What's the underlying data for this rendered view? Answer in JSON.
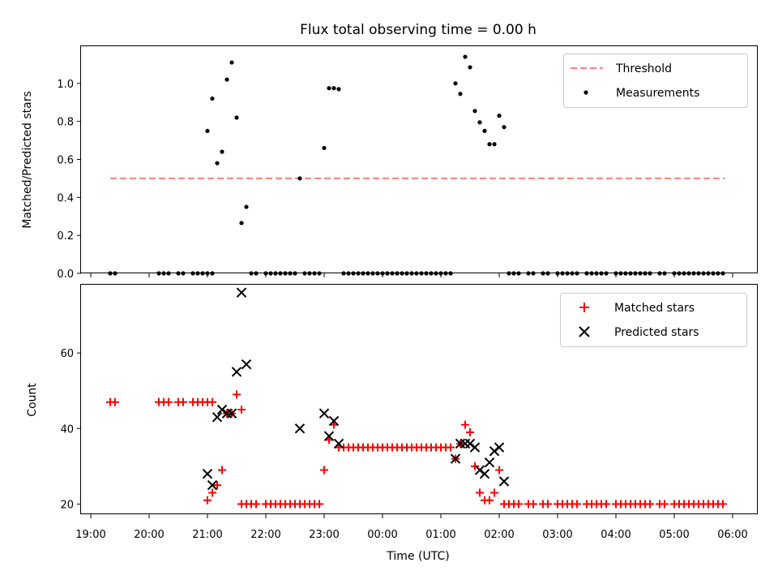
{
  "title": "Flux total observing time = 0.00 h",
  "chart_data": [
    {
      "type": "scatter",
      "ylabel": "Matched/Predicted stars",
      "xlabel": "",
      "ylim": [
        0,
        1.2
      ],
      "yticks": [
        0.0,
        0.2,
        0.4,
        0.6,
        0.8,
        1.0
      ],
      "ytick_labels": [
        "0.0",
        "0.2",
        "0.4",
        "0.6",
        "0.8",
        "1.0"
      ],
      "legend_position": "top-right",
      "threshold": {
        "name": "Threshold",
        "value": 0.5,
        "x_start": "19:20",
        "x_end": "05:52",
        "color": "#ff7f7f"
      },
      "series": [
        {
          "name": "Measurements",
          "color": "#000000",
          "points": [
            [
              "19:20",
              0
            ],
            [
              "19:25",
              0
            ],
            [
              "20:10",
              0
            ],
            [
              "20:15",
              0
            ],
            [
              "20:20",
              0
            ],
            [
              "20:30",
              0
            ],
            [
              "20:35",
              0
            ],
            [
              "20:45",
              0
            ],
            [
              "20:50",
              0
            ],
            [
              "20:55",
              0
            ],
            [
              "21:00",
              0
            ],
            [
              "21:05",
              0
            ],
            [
              "21:00",
              0.75
            ],
            [
              "21:05",
              0.92
            ],
            [
              "21:10",
              0.58
            ],
            [
              "21:15",
              0.64
            ],
            [
              "21:20",
              1.02
            ],
            [
              "21:25",
              1.11
            ],
            [
              "21:30",
              0.82
            ],
            [
              "21:35",
              0.265
            ],
            [
              "21:40",
              0.35
            ],
            [
              "21:45",
              0
            ],
            [
              "21:50",
              0
            ],
            [
              "22:00",
              0
            ],
            [
              "22:05",
              0
            ],
            [
              "22:10",
              0
            ],
            [
              "22:15",
              0
            ],
            [
              "22:20",
              0
            ],
            [
              "22:25",
              0
            ],
            [
              "22:30",
              0
            ],
            [
              "22:40",
              0
            ],
            [
              "22:45",
              0
            ],
            [
              "22:50",
              0
            ],
            [
              "22:55",
              0
            ],
            [
              "22:35",
              0.5
            ],
            [
              "23:00",
              0.66
            ],
            [
              "23:05",
              0.975
            ],
            [
              "23:10",
              0.975
            ],
            [
              "23:15",
              0.97
            ],
            [
              "23:20",
              0
            ],
            [
              "23:25",
              0
            ],
            [
              "23:30",
              0
            ],
            [
              "23:35",
              0
            ],
            [
              "23:40",
              0
            ],
            [
              "23:45",
              0
            ],
            [
              "23:50",
              0
            ],
            [
              "23:55",
              0
            ],
            [
              "00:00",
              0
            ],
            [
              "00:05",
              0
            ],
            [
              "00:10",
              0
            ],
            [
              "00:15",
              0
            ],
            [
              "00:20",
              0
            ],
            [
              "00:25",
              0
            ],
            [
              "00:30",
              0
            ],
            [
              "00:35",
              0
            ],
            [
              "00:40",
              0
            ],
            [
              "00:45",
              0
            ],
            [
              "00:50",
              0
            ],
            [
              "00:55",
              0
            ],
            [
              "01:00",
              0
            ],
            [
              "01:05",
              0
            ],
            [
              "01:10",
              0
            ],
            [
              "01:15",
              1.0
            ],
            [
              "01:20",
              0.945
            ],
            [
              "01:25",
              1.14
            ],
            [
              "01:30",
              1.085
            ],
            [
              "01:35",
              0.855
            ],
            [
              "01:40",
              0.795
            ],
            [
              "01:45",
              0.75
            ],
            [
              "01:50",
              0.68
            ],
            [
              "01:55",
              0.68
            ],
            [
              "02:00",
              0.83
            ],
            [
              "02:05",
              0.77
            ],
            [
              "02:10",
              0
            ],
            [
              "02:15",
              0
            ],
            [
              "02:20",
              0
            ],
            [
              "02:30",
              0
            ],
            [
              "02:35",
              0
            ],
            [
              "02:45",
              0
            ],
            [
              "02:50",
              0
            ],
            [
              "03:00",
              0
            ],
            [
              "03:05",
              0
            ],
            [
              "03:10",
              0
            ],
            [
              "03:15",
              0
            ],
            [
              "03:20",
              0
            ],
            [
              "03:30",
              0
            ],
            [
              "03:35",
              0
            ],
            [
              "03:40",
              0
            ],
            [
              "03:45",
              0
            ],
            [
              "03:50",
              0
            ],
            [
              "04:00",
              0
            ],
            [
              "04:05",
              0
            ],
            [
              "04:10",
              0
            ],
            [
              "04:15",
              0
            ],
            [
              "04:20",
              0
            ],
            [
              "04:25",
              0
            ],
            [
              "04:30",
              0
            ],
            [
              "04:35",
              0
            ],
            [
              "04:45",
              0
            ],
            [
              "04:50",
              0
            ],
            [
              "05:00",
              0
            ],
            [
              "05:05",
              0
            ],
            [
              "05:10",
              0
            ],
            [
              "05:15",
              0
            ],
            [
              "05:20",
              0
            ],
            [
              "05:25",
              0
            ],
            [
              "05:30",
              0
            ],
            [
              "05:35",
              0
            ],
            [
              "05:40",
              0
            ],
            [
              "05:45",
              0
            ],
            [
              "05:50",
              0
            ]
          ]
        }
      ]
    },
    {
      "type": "scatter",
      "ylabel": "Count",
      "xlabel": "Time (UTC)",
      "xlim": [
        "18:50",
        "06:25"
      ],
      "xticks": [
        "19:00",
        "20:00",
        "21:00",
        "22:00",
        "23:00",
        "00:00",
        "01:00",
        "02:00",
        "03:00",
        "04:00",
        "05:00",
        "06:00"
      ],
      "ylim": [
        17.3,
        78.3
      ],
      "yticks": [
        20,
        40,
        60
      ],
      "ytick_labels": [
        "20",
        "40",
        "60"
      ],
      "legend_position": "top-right",
      "series": [
        {
          "name": "Matched stars",
          "marker": "plus",
          "color": "#ff0000",
          "points": [
            [
              "19:20",
              47
            ],
            [
              "19:25",
              47
            ],
            [
              "20:10",
              47
            ],
            [
              "20:15",
              47
            ],
            [
              "20:20",
              47
            ],
            [
              "20:30",
              47
            ],
            [
              "20:35",
              47
            ],
            [
              "20:45",
              47
            ],
            [
              "20:50",
              47
            ],
            [
              "20:55",
              47
            ],
            [
              "21:00",
              47
            ],
            [
              "21:05",
              47
            ],
            [
              "21:00",
              21
            ],
            [
              "21:05",
              23
            ],
            [
              "21:10",
              25
            ],
            [
              "21:15",
              29
            ],
            [
              "21:20",
              44
            ],
            [
              "21:25",
              44
            ],
            [
              "21:30",
              49
            ],
            [
              "21:35",
              45
            ],
            [
              "21:35",
              20
            ],
            [
              "21:40",
              20
            ],
            [
              "21:45",
              20
            ],
            [
              "21:50",
              20
            ],
            [
              "22:00",
              20
            ],
            [
              "22:05",
              20
            ],
            [
              "22:10",
              20
            ],
            [
              "22:15",
              20
            ],
            [
              "22:20",
              20
            ],
            [
              "22:25",
              20
            ],
            [
              "22:30",
              20
            ],
            [
              "22:35",
              20
            ],
            [
              "22:40",
              20
            ],
            [
              "22:45",
              20
            ],
            [
              "22:50",
              20
            ],
            [
              "22:55",
              20
            ],
            [
              "23:00",
              29
            ],
            [
              "23:05",
              37
            ],
            [
              "23:10",
              41
            ],
            [
              "23:15",
              35
            ],
            [
              "23:20",
              35
            ],
            [
              "23:25",
              35
            ],
            [
              "23:30",
              35
            ],
            [
              "23:35",
              35
            ],
            [
              "23:40",
              35
            ],
            [
              "23:45",
              35
            ],
            [
              "23:50",
              35
            ],
            [
              "23:55",
              35
            ],
            [
              "00:00",
              35
            ],
            [
              "00:05",
              35
            ],
            [
              "00:10",
              35
            ],
            [
              "00:15",
              35
            ],
            [
              "00:20",
              35
            ],
            [
              "00:25",
              35
            ],
            [
              "00:30",
              35
            ],
            [
              "00:35",
              35
            ],
            [
              "00:40",
              35
            ],
            [
              "00:45",
              35
            ],
            [
              "00:50",
              35
            ],
            [
              "00:55",
              35
            ],
            [
              "01:00",
              35
            ],
            [
              "01:05",
              35
            ],
            [
              "01:10",
              35
            ],
            [
              "01:15",
              32
            ],
            [
              "01:20",
              36
            ],
            [
              "01:25",
              41
            ],
            [
              "01:30",
              39
            ],
            [
              "01:35",
              30
            ],
            [
              "01:40",
              23
            ],
            [
              "01:45",
              21
            ],
            [
              "01:50",
              21
            ],
            [
              "01:55",
              23
            ],
            [
              "02:00",
              29
            ],
            [
              "02:05",
              20
            ],
            [
              "02:10",
              20
            ],
            [
              "02:15",
              20
            ],
            [
              "02:20",
              20
            ],
            [
              "02:30",
              20
            ],
            [
              "02:35",
              20
            ],
            [
              "02:45",
              20
            ],
            [
              "02:50",
              20
            ],
            [
              "03:00",
              20
            ],
            [
              "03:05",
              20
            ],
            [
              "03:10",
              20
            ],
            [
              "03:15",
              20
            ],
            [
              "03:20",
              20
            ],
            [
              "03:30",
              20
            ],
            [
              "03:35",
              20
            ],
            [
              "03:40",
              20
            ],
            [
              "03:45",
              20
            ],
            [
              "03:50",
              20
            ],
            [
              "04:00",
              20
            ],
            [
              "04:05",
              20
            ],
            [
              "04:10",
              20
            ],
            [
              "04:15",
              20
            ],
            [
              "04:20",
              20
            ],
            [
              "04:25",
              20
            ],
            [
              "04:30",
              20
            ],
            [
              "04:35",
              20
            ],
            [
              "04:45",
              20
            ],
            [
              "04:50",
              20
            ],
            [
              "05:00",
              20
            ],
            [
              "05:05",
              20
            ],
            [
              "05:10",
              20
            ],
            [
              "05:15",
              20
            ],
            [
              "05:20",
              20
            ],
            [
              "05:25",
              20
            ],
            [
              "05:30",
              20
            ],
            [
              "05:35",
              20
            ],
            [
              "05:40",
              20
            ],
            [
              "05:45",
              20
            ],
            [
              "05:50",
              20
            ]
          ]
        },
        {
          "name": "Predicted stars",
          "marker": "x",
          "color": "#000000",
          "points": [
            [
              "21:00",
              28
            ],
            [
              "21:05",
              25
            ],
            [
              "21:10",
              43
            ],
            [
              "21:15",
              45
            ],
            [
              "21:20",
              44
            ],
            [
              "21:25",
              44
            ],
            [
              "21:30",
              55
            ],
            [
              "21:35",
              76
            ],
            [
              "21:40",
              57
            ],
            [
              "22:35",
              40
            ],
            [
              "23:00",
              44
            ],
            [
              "23:05",
              38
            ],
            [
              "23:10",
              42
            ],
            [
              "23:15",
              36
            ],
            [
              "01:15",
              32
            ],
            [
              "01:20",
              36
            ],
            [
              "01:25",
              36
            ],
            [
              "01:30",
              36
            ],
            [
              "01:35",
              35
            ],
            [
              "01:40",
              29
            ],
            [
              "01:45",
              28
            ],
            [
              "01:50",
              31
            ],
            [
              "01:55",
              34
            ],
            [
              "02:00",
              35
            ],
            [
              "02:05",
              26
            ]
          ]
        }
      ]
    }
  ]
}
